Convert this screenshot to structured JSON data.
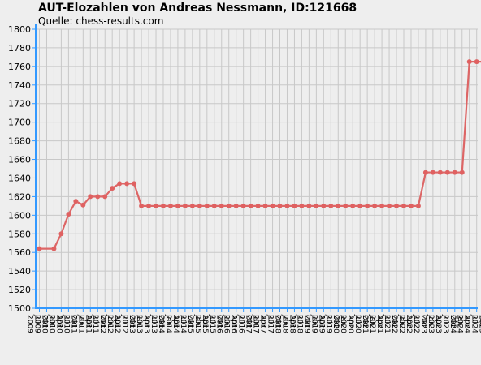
{
  "title": "AUT-Elozahlen von Andreas Nessmann, ID:121668",
  "subtitle": "Quelle: chess-results.com",
  "colors": {
    "background": "#eeeeee",
    "grid": "#c8c8c8",
    "axis": "#3399ff",
    "line": "#dd6666",
    "point": "#e06060"
  },
  "chart_data": {
    "type": "line",
    "title": "AUT-Elozahlen von Andreas Nessmann, ID:121668",
    "subtitle": "Quelle: chess-results.com",
    "xlabel": "",
    "ylabel": "",
    "ylim": [
      1500,
      1800
    ],
    "yticks": [
      1500,
      1520,
      1540,
      1560,
      1580,
      1600,
      1620,
      1640,
      1660,
      1680,
      1700,
      1720,
      1740,
      1760,
      1780,
      1800
    ],
    "grid": true,
    "legend": "none",
    "categories": [
      "Jul 2009",
      "Okt 2009",
      "Jan 2010",
      "Apr 2010",
      "Jul 2010",
      "Okt 2010",
      "Jan 2011",
      "Apr 2011",
      "Jul 2011",
      "Okt 2011",
      "Jan 2012",
      "Apr 2012",
      "Jul 2012",
      "Okt 2012",
      "Jan 2013",
      "Apr 2013",
      "Jul 2013",
      "Okt 2013",
      "Jan 2014",
      "Apr 2014",
      "Jul 2014",
      "Okt 2014",
      "Jan 2015",
      "Apr 2015",
      "Jul 2015",
      "Okt 2015",
      "Jan 2016",
      "Apr 2016",
      "Jul 2016",
      "Okt 2016",
      "Jan 2017",
      "Apr 2017",
      "Jul 2017",
      "Okt 2017",
      "Jan 2018",
      "Apr 2018",
      "Jul 2018",
      "Okt 2018",
      "Jan 2019",
      "Apr 2019",
      "Jul 2019",
      "Okt 2019",
      "Jan 2020",
      "Apr 2020",
      "Jul 2020",
      "Okt 2020",
      "Jan 2021",
      "Apr 2021",
      "Jul 2021",
      "Okt 2021",
      "Jan 2022",
      "Apr 2022",
      "Jul 2022",
      "Okt 2022",
      "Jan 2023",
      "Apr 2023",
      "Jul 2023",
      "Okt 2023",
      "Jan 2024",
      "Apr 2024",
      "Jul 2024",
      "Okt 2024",
      "Jan 2025",
      "Apr 2025",
      "Jul 2025"
    ],
    "series": [
      {
        "points": [
          {
            "x": "Jul 2009",
            "y": 1564
          },
          {
            "x": "Jan 2010",
            "y": 1564
          },
          {
            "x": "Apr 2010",
            "y": 1580
          },
          {
            "x": "Jul 2010",
            "y": 1601
          },
          {
            "x": "Okt 2010",
            "y": 1615
          },
          {
            "x": "Jan 2011",
            "y": 1611
          },
          {
            "x": "Apr 2011",
            "y": 1620
          },
          {
            "x": "Jul 2011",
            "y": 1620
          },
          {
            "x": "Okt 2011",
            "y": 1620
          },
          {
            "x": "Jan 2012",
            "y": 1629
          },
          {
            "x": "Apr 2012",
            "y": 1634
          },
          {
            "x": "Jul 2012",
            "y": 1634
          },
          {
            "x": "Okt 2012",
            "y": 1634
          },
          {
            "x": "Jan 2013",
            "y": 1610
          },
          {
            "x": "Apr 2013",
            "y": 1610
          },
          {
            "x": "Jul 2013",
            "y": 1610
          },
          {
            "x": "Okt 2013",
            "y": 1610
          },
          {
            "x": "Jan 2014",
            "y": 1610
          },
          {
            "x": "Apr 2014",
            "y": 1610
          },
          {
            "x": "Jul 2014",
            "y": 1610
          },
          {
            "x": "Okt 2014",
            "y": 1610
          },
          {
            "x": "Jan 2015",
            "y": 1610
          },
          {
            "x": "Apr 2015",
            "y": 1610
          },
          {
            "x": "Jul 2015",
            "y": 1610
          },
          {
            "x": "Okt 2015",
            "y": 1610
          },
          {
            "x": "Jan 2016",
            "y": 1610
          },
          {
            "x": "Apr 2016",
            "y": 1610
          },
          {
            "x": "Jul 2016",
            "y": 1610
          },
          {
            "x": "Okt 2016",
            "y": 1610
          },
          {
            "x": "Jan 2017",
            "y": 1610
          },
          {
            "x": "Apr 2017",
            "y": 1610
          },
          {
            "x": "Jul 2017",
            "y": 1610
          },
          {
            "x": "Okt 2017",
            "y": 1610
          },
          {
            "x": "Jan 2018",
            "y": 1610
          },
          {
            "x": "Apr 2018",
            "y": 1610
          },
          {
            "x": "Jul 2018",
            "y": 1610
          },
          {
            "x": "Okt 2018",
            "y": 1610
          },
          {
            "x": "Jan 2019",
            "y": 1610
          },
          {
            "x": "Apr 2019",
            "y": 1610
          },
          {
            "x": "Jul 2019",
            "y": 1610
          },
          {
            "x": "Okt 2019",
            "y": 1610
          },
          {
            "x": "Jan 2020",
            "y": 1610
          },
          {
            "x": "Apr 2020",
            "y": 1610
          },
          {
            "x": "Jul 2020",
            "y": 1610
          },
          {
            "x": "Okt 2020",
            "y": 1610
          },
          {
            "x": "Jan 2021",
            "y": 1610
          },
          {
            "x": "Apr 2021",
            "y": 1610
          },
          {
            "x": "Jul 2021",
            "y": 1610
          },
          {
            "x": "Okt 2021",
            "y": 1610
          },
          {
            "x": "Jan 2022",
            "y": 1610
          },
          {
            "x": "Apr 2022",
            "y": 1610
          },
          {
            "x": "Jul 2022",
            "y": 1610
          },
          {
            "x": "Okt 2022",
            "y": 1646
          },
          {
            "x": "Jan 2023",
            "y": 1646
          },
          {
            "x": "Apr 2023",
            "y": 1646
          },
          {
            "x": "Jul 2023",
            "y": 1646
          },
          {
            "x": "Okt 2023",
            "y": 1646
          },
          {
            "x": "Jan 2024",
            "y": 1646
          },
          {
            "x": "Apr 2024",
            "y": 1765
          },
          {
            "x": "Jul 2024",
            "y": 1765
          },
          {
            "x": "Okt 2024",
            "y": 1765
          },
          {
            "x": "Jan 2025",
            "y": 1765
          },
          {
            "x": "Apr 2025",
            "y": 1765
          }
        ]
      }
    ]
  }
}
